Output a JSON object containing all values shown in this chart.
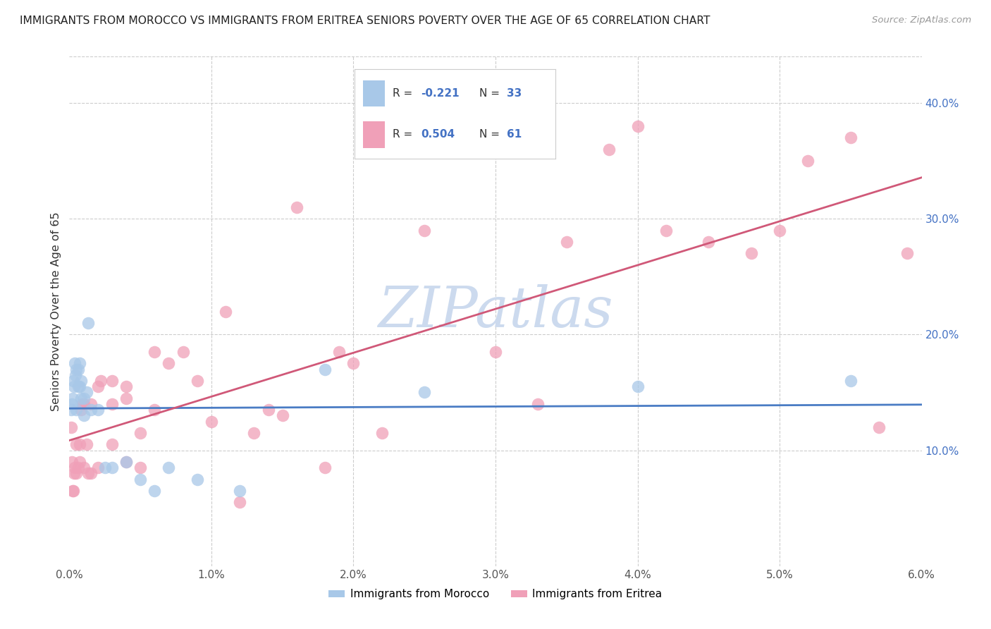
{
  "title": "IMMIGRANTS FROM MOROCCO VS IMMIGRANTS FROM ERITREA SENIORS POVERTY OVER THE AGE OF 65 CORRELATION CHART",
  "source": "Source: ZipAtlas.com",
  "ylabel": "Seniors Poverty Over the Age of 65",
  "xlim": [
    0.0,
    0.06
  ],
  "ylim": [
    0.0,
    0.44
  ],
  "xticks": [
    0.0,
    0.01,
    0.02,
    0.03,
    0.04,
    0.05,
    0.06
  ],
  "xticklabels": [
    "0.0%",
    "1.0%",
    "2.0%",
    "3.0%",
    "4.0%",
    "5.0%",
    "6.0%"
  ],
  "yticks_right": [
    0.1,
    0.2,
    0.3,
    0.4
  ],
  "yticklabels_right": [
    "10.0%",
    "20.0%",
    "30.0%",
    "40.0%"
  ],
  "morocco_R": -0.221,
  "morocco_N": 33,
  "eritrea_R": 0.504,
  "eritrea_N": 61,
  "morocco_color": "#a8c8e8",
  "eritrea_color": "#f0a0b8",
  "morocco_line_color": "#4a7cc4",
  "eritrea_line_color": "#d05878",
  "watermark_color": "#ccdaee",
  "grid_color": "#cccccc",
  "legend_border_color": "#cccccc",
  "morocco_x": [
    0.00015,
    0.0002,
    0.00025,
    0.0003,
    0.00035,
    0.0004,
    0.00045,
    0.0005,
    0.0005,
    0.0006,
    0.0006,
    0.0007,
    0.0007,
    0.0008,
    0.0008,
    0.001,
    0.001,
    0.0012,
    0.0013,
    0.0015,
    0.002,
    0.0025,
    0.003,
    0.004,
    0.005,
    0.006,
    0.007,
    0.009,
    0.012,
    0.018,
    0.025,
    0.04,
    0.055
  ],
  "morocco_y": [
    0.135,
    0.14,
    0.145,
    0.16,
    0.155,
    0.175,
    0.165,
    0.17,
    0.135,
    0.155,
    0.17,
    0.155,
    0.175,
    0.16,
    0.145,
    0.145,
    0.13,
    0.15,
    0.21,
    0.135,
    0.135,
    0.085,
    0.085,
    0.09,
    0.075,
    0.065,
    0.085,
    0.075,
    0.065,
    0.17,
    0.15,
    0.155,
    0.16
  ],
  "eritrea_x": [
    0.00015,
    0.0002,
    0.00025,
    0.0003,
    0.00035,
    0.0004,
    0.0005,
    0.0005,
    0.0006,
    0.0007,
    0.0007,
    0.0008,
    0.0009,
    0.001,
    0.001,
    0.0012,
    0.0013,
    0.0015,
    0.0015,
    0.002,
    0.002,
    0.0022,
    0.003,
    0.003,
    0.003,
    0.004,
    0.004,
    0.004,
    0.005,
    0.005,
    0.006,
    0.006,
    0.007,
    0.008,
    0.009,
    0.01,
    0.011,
    0.012,
    0.013,
    0.014,
    0.015,
    0.016,
    0.018,
    0.019,
    0.02,
    0.022,
    0.025,
    0.028,
    0.03,
    0.033,
    0.035,
    0.038,
    0.04,
    0.042,
    0.045,
    0.048,
    0.05,
    0.052,
    0.055,
    0.057,
    0.059
  ],
  "eritrea_y": [
    0.12,
    0.09,
    0.065,
    0.065,
    0.08,
    0.085,
    0.08,
    0.105,
    0.085,
    0.09,
    0.105,
    0.135,
    0.14,
    0.085,
    0.14,
    0.105,
    0.08,
    0.08,
    0.14,
    0.155,
    0.085,
    0.16,
    0.14,
    0.16,
    0.105,
    0.155,
    0.09,
    0.145,
    0.085,
    0.115,
    0.185,
    0.135,
    0.175,
    0.185,
    0.16,
    0.125,
    0.22,
    0.055,
    0.115,
    0.135,
    0.13,
    0.31,
    0.085,
    0.185,
    0.175,
    0.115,
    0.29,
    0.37,
    0.185,
    0.14,
    0.28,
    0.36,
    0.38,
    0.29,
    0.28,
    0.27,
    0.29,
    0.35,
    0.37,
    0.12,
    0.27
  ]
}
